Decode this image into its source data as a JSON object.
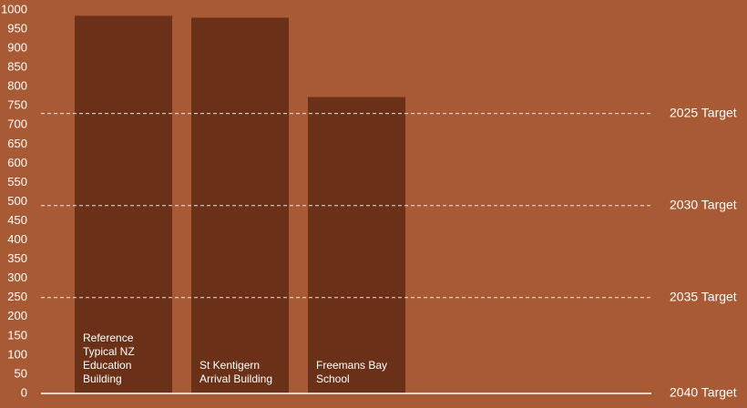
{
  "chart_data": {
    "type": "bar",
    "categories": [
      "Reference Typical NZ Education Building",
      "St Kentigern Arrival Building",
      "Freemans Bay School"
    ],
    "values": [
      985,
      980,
      773
    ],
    "color": "#6b3118",
    "ylim": [
      0,
      1000
    ],
    "yticks": [
      0,
      50,
      100,
      150,
      200,
      250,
      300,
      350,
      400,
      450,
      500,
      550,
      600,
      650,
      700,
      750,
      800,
      850,
      900,
      950,
      1000
    ],
    "reference_lines": [
      {
        "value": 730,
        "label": "2025 Target"
      },
      {
        "value": 490,
        "label": "2030 Target"
      },
      {
        "value": 250,
        "label": "2035 Target"
      },
      {
        "value": 0,
        "label": "2040 Target"
      }
    ]
  }
}
